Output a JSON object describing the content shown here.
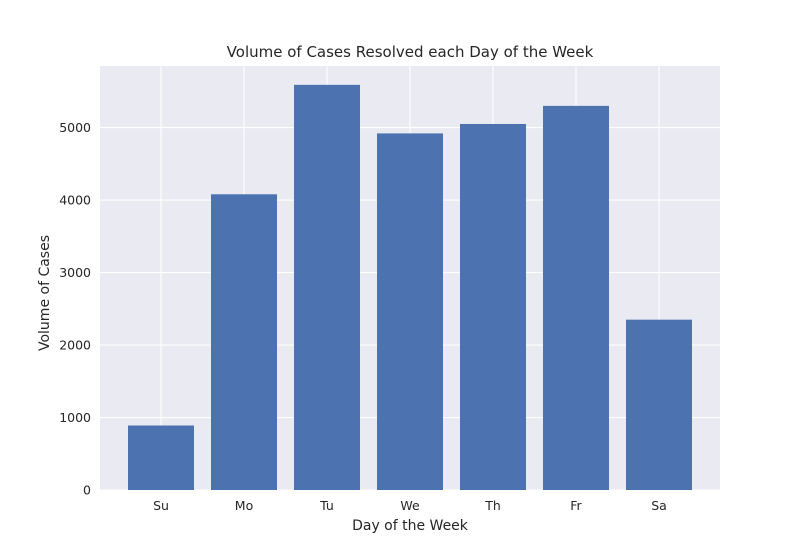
{
  "chart_data": {
    "type": "bar",
    "title": "Volume of Cases Resolved each Day of the Week",
    "xlabel": "Day of the Week",
    "ylabel": "Volume of Cases",
    "categories": [
      "Su",
      "Mo",
      "Tu",
      "We",
      "Th",
      "Fr",
      "Sa"
    ],
    "values": [
      890,
      4080,
      5590,
      4920,
      5050,
      5300,
      2350
    ],
    "ylim": [
      0,
      5850
    ],
    "yticks": [
      0,
      1000,
      2000,
      3000,
      4000,
      5000
    ],
    "grid": true,
    "colors": {
      "bar": "#4C72B0",
      "plot_background": "#EAEAF2",
      "grid": "#FFFFFF"
    }
  }
}
